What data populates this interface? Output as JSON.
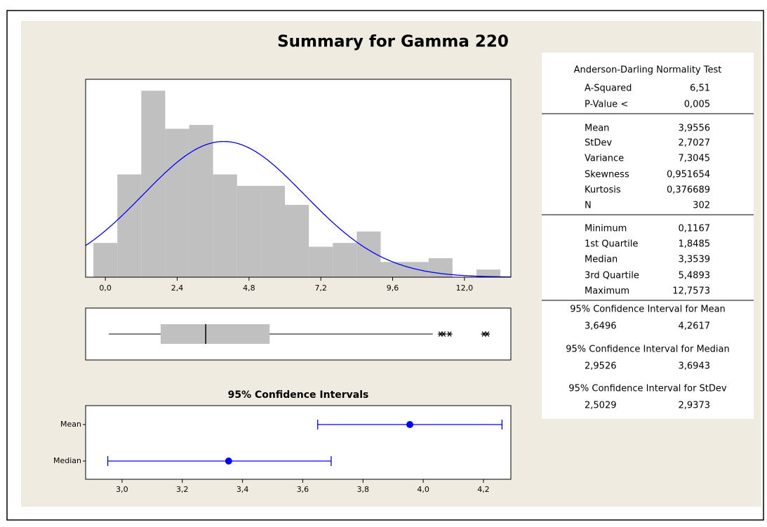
{
  "title": "Summary for Gamma 220",
  "chart_data": [
    {
      "type": "histogram",
      "color": "#c0c0c0",
      "fit": "normal",
      "fit_color": "#0000ff",
      "bins": [
        -0.4,
        0.4,
        1.2,
        2.0,
        2.8,
        3.6,
        4.4,
        5.2,
        6.0,
        6.8,
        7.6,
        8.4,
        9.2,
        10.0,
        10.8,
        11.6,
        12.4,
        13.2
      ],
      "counts": [
        9,
        27,
        49,
        39,
        40,
        27,
        24,
        24,
        19,
        8,
        9,
        12,
        4,
        4,
        5,
        0,
        2
      ],
      "xlim": [
        -0.66,
        13.55
      ],
      "ylim": [
        0,
        52
      ],
      "xticks": [
        {
          "value": 0.0,
          "label": "0,0"
        },
        {
          "value": 2.4,
          "label": "2,4"
        },
        {
          "value": 4.8,
          "label": "4,8"
        },
        {
          "value": 7.2,
          "label": "7,2"
        },
        {
          "value": 9.6,
          "label": "9,6"
        },
        {
          "value": 12.0,
          "label": "12,0"
        }
      ]
    },
    {
      "type": "boxplot",
      "color": "#c0c0c0",
      "xlim": [
        -0.66,
        13.55
      ],
      "whisker_high": 10.94,
      "outliers": [
        11.2,
        11.3,
        11.5,
        12.65,
        12.7573
      ]
    },
    {
      "type": "interval",
      "title": "95% Confidence Intervals",
      "color": "#0000ff",
      "categories": [
        "Mean",
        "Median"
      ],
      "xlim": [
        2.879,
        4.291
      ],
      "xticks": [
        {
          "value": 3.0,
          "label": "3,0"
        },
        {
          "value": 3.2,
          "label": "3,2"
        },
        {
          "value": 3.4,
          "label": "3,4"
        },
        {
          "value": 3.6,
          "label": "3,6"
        },
        {
          "value": 3.8,
          "label": "3,8"
        },
        {
          "value": 4.0,
          "label": "4,0"
        },
        {
          "value": 4.2,
          "label": "4,2"
        }
      ]
    }
  ],
  "stats": {
    "ad_heading": "Anderson-Darling Normality Test",
    "normality": {
      "labels": [
        "A-Squared",
        "P-Value <"
      ],
      "values": [
        {
          "value": 6.51,
          "label": "6,51"
        },
        {
          "value": 0.005,
          "label": "0,005"
        }
      ]
    },
    "moments": {
      "labels": [
        "Mean",
        "StDev",
        "Variance",
        "Skewness",
        "Kurtosis",
        "N"
      ],
      "values": [
        {
          "value": 3.9556,
          "label": "3,9556"
        },
        {
          "value": 2.7027,
          "label": "2,7027"
        },
        {
          "value": 7.3045,
          "label": "7,3045"
        },
        {
          "value": 0.951654,
          "label": "0,951654"
        },
        {
          "value": 0.376689,
          "label": "0,376689"
        },
        302
      ]
    },
    "quantiles": {
      "labels": [
        "Minimum",
        "1st Quartile",
        "Median",
        "3rd Quartile",
        "Maximum"
      ],
      "values": [
        {
          "value": 0.1167,
          "label": "0,1167"
        },
        {
          "value": 1.8485,
          "label": "1,8485"
        },
        {
          "value": 3.3539,
          "label": "3,3539"
        },
        {
          "value": 5.4893,
          "label": "5,4893"
        },
        {
          "value": 12.7573,
          "label": "12,7573"
        }
      ]
    },
    "intervals": [
      {
        "heading": "95% Confidence Interval for Mean",
        "lower": {
          "value": 3.6496,
          "label": "3,6496"
        },
        "upper": {
          "value": 4.2617,
          "label": "4,2617"
        }
      },
      {
        "heading": "95% Confidence Interval for Median",
        "lower": {
          "value": 2.9526,
          "label": "2,9526"
        },
        "upper": {
          "value": 3.6943,
          "label": "3,6943"
        }
      },
      {
        "heading": "95% Confidence Interval for StDev",
        "lower": {
          "value": 2.5029,
          "label": "2,5029"
        },
        "upper": {
          "value": 2.9373,
          "label": "2,9373"
        }
      }
    ]
  }
}
